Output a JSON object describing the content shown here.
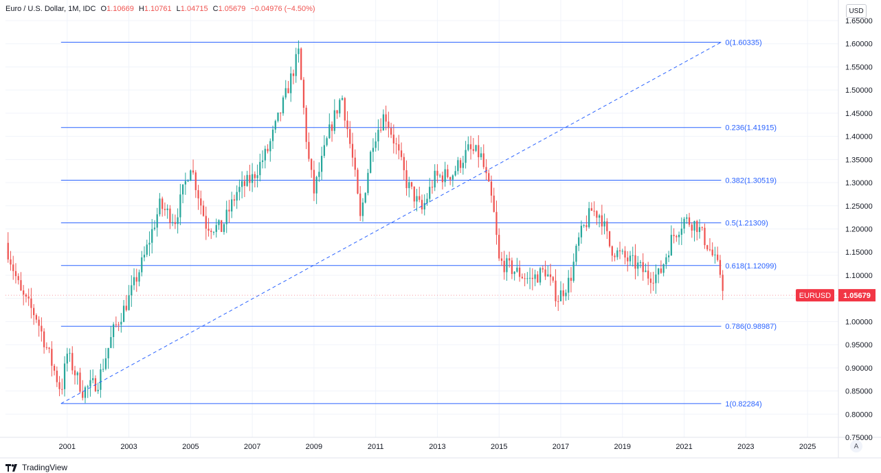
{
  "header": {
    "symbol": "Euro / U.S. Dollar, 1M, IDC",
    "o_label": "O",
    "o": "1.10669",
    "h_label": "H",
    "h": "1.10761",
    "l_label": "L",
    "l": "1.04715",
    "c_label": "C",
    "c": "1.05679",
    "change": "−0.04976 (−4.50%)"
  },
  "currency_button": "USD",
  "auto_button": "A",
  "brand": "TradingView",
  "price_badge": {
    "symbol": "EURUSD",
    "value": "1.05679"
  },
  "colors": {
    "up": "#26a69a",
    "down": "#ef5350",
    "fib": "#2962ff",
    "badge": "#f23645"
  },
  "chart_data": {
    "type": "candlestick",
    "title": "Euro / U.S. Dollar, 1M, IDC",
    "xlabel": "",
    "ylabel": "",
    "x_ticks": [
      "2001",
      "2003",
      "2005",
      "2007",
      "2009",
      "2011",
      "2013",
      "2015",
      "2017",
      "2019",
      "2021",
      "2023",
      "2025"
    ],
    "y_ticks": [
      "1.65000",
      "1.60000",
      "1.55000",
      "1.50000",
      "1.45000",
      "1.40000",
      "1.35000",
      "1.30000",
      "1.25000",
      "1.20000",
      "1.15000",
      "1.10000",
      "1.05000",
      "1.00000",
      "0.95000",
      "0.90000",
      "0.85000",
      "0.80000",
      "0.75000"
    ],
    "ylim": [
      0.75,
      1.65
    ],
    "xlim": [
      1999.0,
      2026.0
    ],
    "grid": true,
    "fibonacci_levels": [
      {
        "label": "0(1.60335)",
        "value": 1.60335
      },
      {
        "label": "0.236(1.41915)",
        "value": 1.41915
      },
      {
        "label": "0.382(1.30519)",
        "value": 1.30519
      },
      {
        "label": "0.5(1.21309)",
        "value": 1.21309
      },
      {
        "label": "0.618(1.12099)",
        "value": 1.12099
      },
      {
        "label": "0.786(0.98987)",
        "value": 0.98987
      },
      {
        "label": "1(0.82284)",
        "value": 0.82284
      }
    ],
    "fib_range": {
      "x_start": 2000.8,
      "x_end": 2022.2
    },
    "trendline": {
      "x1": 2000.8,
      "y1": 0.82284,
      "x2": 2022.2,
      "y2": 1.60335
    },
    "last_price": 1.05679,
    "price_path": [
      [
        1999.0,
        1.17
      ],
      [
        1999.5,
        1.06
      ],
      [
        2000.0,
        1.01
      ],
      [
        2000.4,
        0.93
      ],
      [
        2000.8,
        0.85
      ],
      [
        2001.0,
        0.93
      ],
      [
        2001.5,
        0.85
      ],
      [
        2002.0,
        0.87
      ],
      [
        2002.5,
        0.98
      ],
      [
        2003.0,
        1.05
      ],
      [
        2003.5,
        1.14
      ],
      [
        2004.0,
        1.25
      ],
      [
        2004.5,
        1.22
      ],
      [
        2005.0,
        1.34
      ],
      [
        2005.5,
        1.21
      ],
      [
        2006.0,
        1.2
      ],
      [
        2006.5,
        1.28
      ],
      [
        2007.0,
        1.31
      ],
      [
        2007.5,
        1.37
      ],
      [
        2008.0,
        1.47
      ],
      [
        2008.5,
        1.58
      ],
      [
        2008.8,
        1.36
      ],
      [
        2009.0,
        1.28
      ],
      [
        2009.5,
        1.41
      ],
      [
        2009.9,
        1.49
      ],
      [
        2010.3,
        1.33
      ],
      [
        2010.5,
        1.22
      ],
      [
        2010.9,
        1.39
      ],
      [
        2011.3,
        1.45
      ],
      [
        2011.7,
        1.37
      ],
      [
        2012.0,
        1.3
      ],
      [
        2012.5,
        1.24
      ],
      [
        2012.9,
        1.31
      ],
      [
        2013.5,
        1.32
      ],
      [
        2014.0,
        1.37
      ],
      [
        2014.4,
        1.36
      ],
      [
        2014.8,
        1.25
      ],
      [
        2015.0,
        1.13
      ],
      [
        2015.5,
        1.11
      ],
      [
        2016.0,
        1.09
      ],
      [
        2016.5,
        1.11
      ],
      [
        2016.9,
        1.05
      ],
      [
        2017.3,
        1.09
      ],
      [
        2017.6,
        1.18
      ],
      [
        2018.0,
        1.24
      ],
      [
        2018.3,
        1.23
      ],
      [
        2018.6,
        1.16
      ],
      [
        2019.0,
        1.14
      ],
      [
        2019.5,
        1.12
      ],
      [
        2019.8,
        1.1
      ],
      [
        2020.2,
        1.1
      ],
      [
        2020.6,
        1.18
      ],
      [
        2021.0,
        1.22
      ],
      [
        2021.4,
        1.21
      ],
      [
        2021.8,
        1.16
      ],
      [
        2022.0,
        1.13
      ],
      [
        2022.2,
        1.1
      ],
      [
        2022.3,
        1.057
      ]
    ]
  }
}
